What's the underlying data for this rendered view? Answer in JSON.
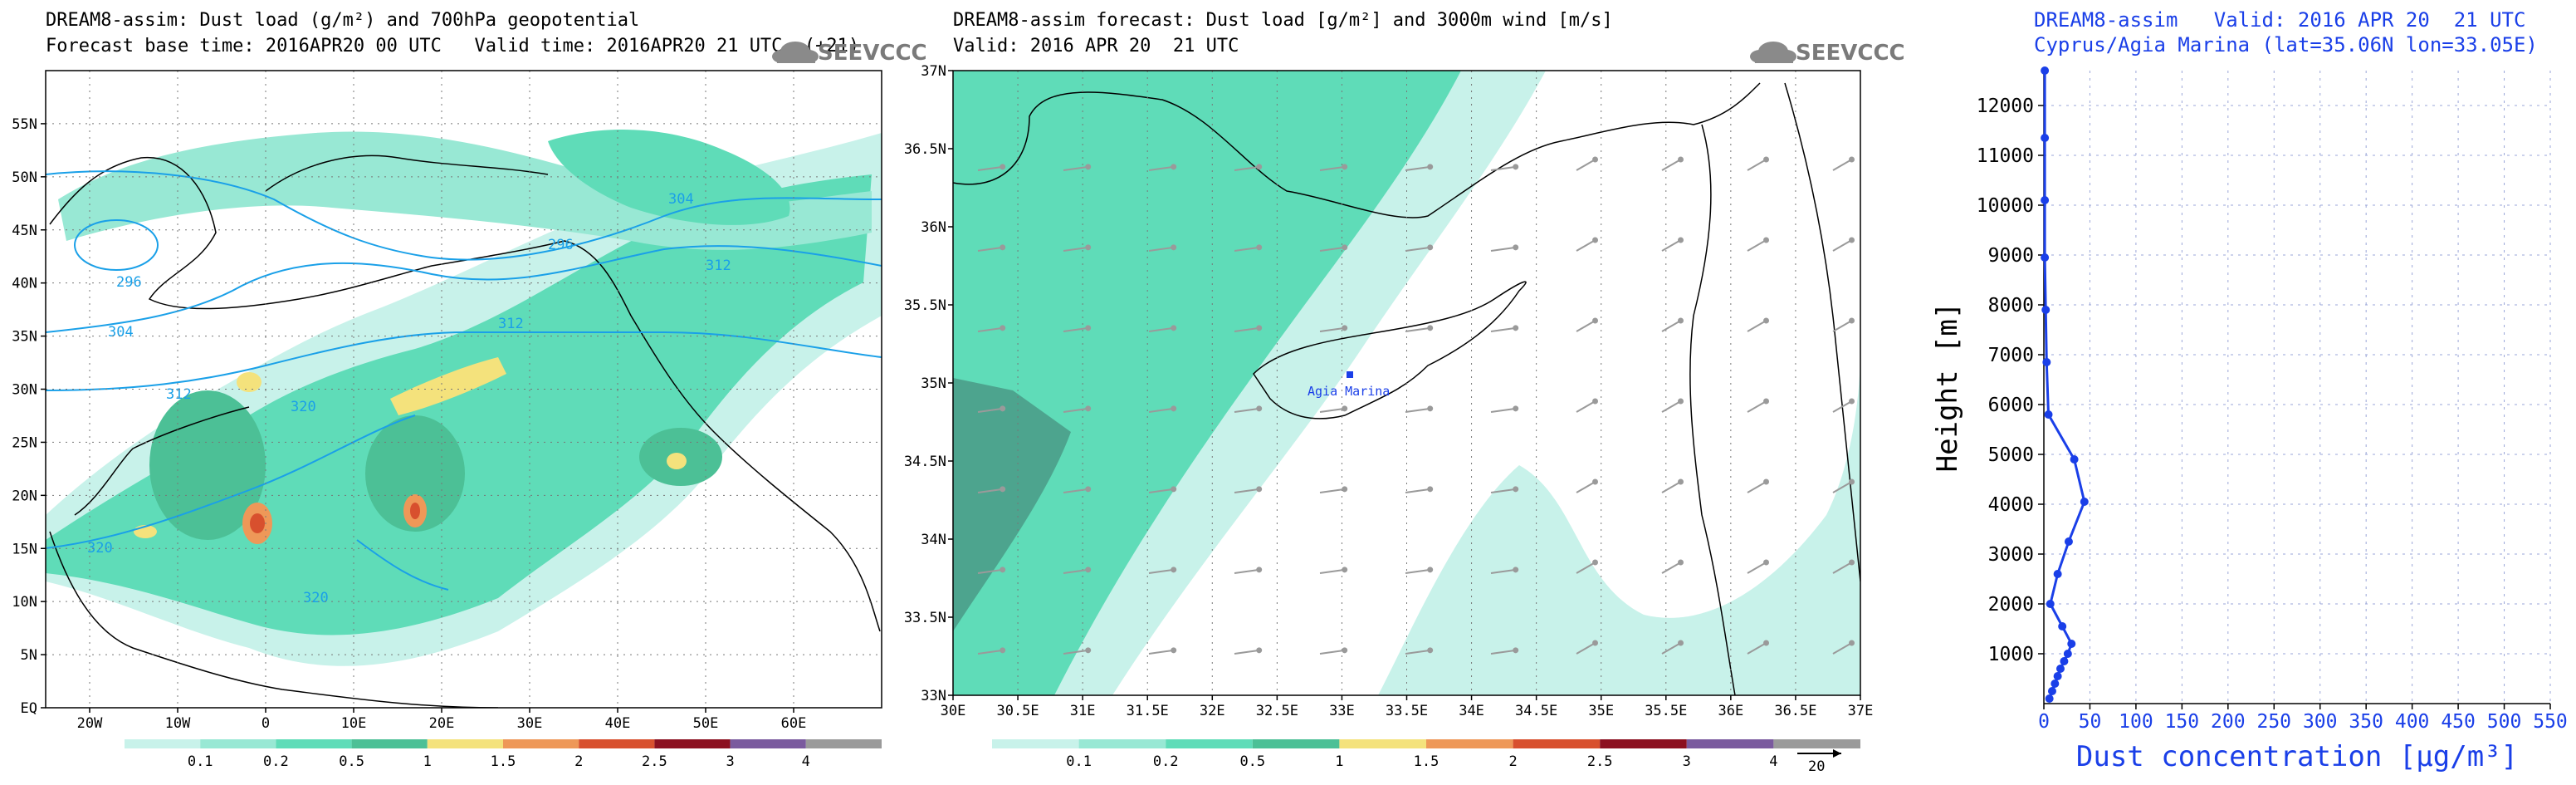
{
  "panel1": {
    "title_line1": "DREAM8-assim: Dust load (g/m²) and 700hPa geopotential",
    "title_line2": "Forecast base time: 2016APR20 00 UTC   Valid time: 2016APR20 21 UTC  (+21)",
    "logo": "SEEVCCC",
    "y_ticks": [
      "EQ",
      "5N",
      "10N",
      "15N",
      "20N",
      "25N",
      "30N",
      "35N",
      "40N",
      "45N",
      "50N",
      "55N"
    ],
    "x_ticks": [
      "20W",
      "10W",
      "0",
      "10E",
      "20E",
      "30E",
      "40E",
      "50E",
      "60E"
    ],
    "contour_labels": [
      "296",
      "296",
      "304",
      "304",
      "312",
      "312",
      "312",
      "320",
      "320",
      "320"
    ]
  },
  "panel2": {
    "title_line1": "DREAM8-assim forecast: Dust load [g/m²] and 3000m wind [m/s]",
    "title_line2": "Valid: 2016 APR 20  21 UTC",
    "logo": "SEEVCCC",
    "y_ticks": [
      "33N",
      "33.5N",
      "34N",
      "34.5N",
      "35N",
      "35.5N",
      "36N",
      "36.5N",
      "37N"
    ],
    "x_ticks": [
      "30E",
      "30.5E",
      "31E",
      "31.5E",
      "32E",
      "32.5E",
      "33E",
      "33.5E",
      "34E",
      "34.5E",
      "35E",
      "35.5E",
      "36E",
      "36.5E",
      "37E"
    ],
    "station_label": "Agia Marina",
    "wind_ref_label": "20"
  },
  "colorbar": {
    "labels": [
      "0.1",
      "0.2",
      "0.5",
      "1",
      "1.5",
      "2",
      "2.5",
      "3",
      "4"
    ],
    "colors": [
      "#c8f2ea",
      "#98e8d4",
      "#5fdcb8",
      "#4cc096",
      "#f4e27c",
      "#ee9858",
      "#d8502e",
      "#8c1020",
      "#7a5a9e",
      "#9a9a9a"
    ]
  },
  "chart_data": {
    "type": "line",
    "title": "DREAM8-assim   Valid: 2016 APR 20  21 UTC",
    "subtitle": "Cyprus/Agia Marina (lat=35.06N lon=33.05E)",
    "xlabel": "Dust concentration [µg/m³]",
    "ylabel": "Height [m]",
    "xlim": [
      0,
      550
    ],
    "ylim": [
      0,
      12700
    ],
    "x_ticks": [
      "0",
      "50",
      "100",
      "150",
      "200",
      "250",
      "300",
      "350",
      "400",
      "450",
      "500",
      "550"
    ],
    "y_ticks": [
      "1000",
      "2000",
      "3000",
      "4000",
      "5000",
      "6000",
      "7000",
      "8000",
      "9000",
      "10000",
      "11000",
      "12000"
    ],
    "grid": true,
    "color": "#1a3fe8",
    "series": [
      {
        "points": [
          [
            6,
            100
          ],
          [
            9,
            250
          ],
          [
            12,
            400
          ],
          [
            15,
            550
          ],
          [
            18,
            700
          ],
          [
            22,
            850
          ],
          [
            26,
            1000
          ],
          [
            30,
            1200
          ],
          [
            20,
            1550
          ],
          [
            7,
            2000
          ],
          [
            15,
            2600
          ],
          [
            27,
            3250
          ],
          [
            44,
            4050
          ],
          [
            33,
            4900
          ],
          [
            5,
            5800
          ],
          [
            3,
            6850
          ],
          [
            2,
            7900
          ],
          [
            1,
            8950
          ],
          [
            1,
            10100
          ],
          [
            1,
            11350
          ],
          [
            1,
            12700
          ]
        ]
      }
    ]
  }
}
